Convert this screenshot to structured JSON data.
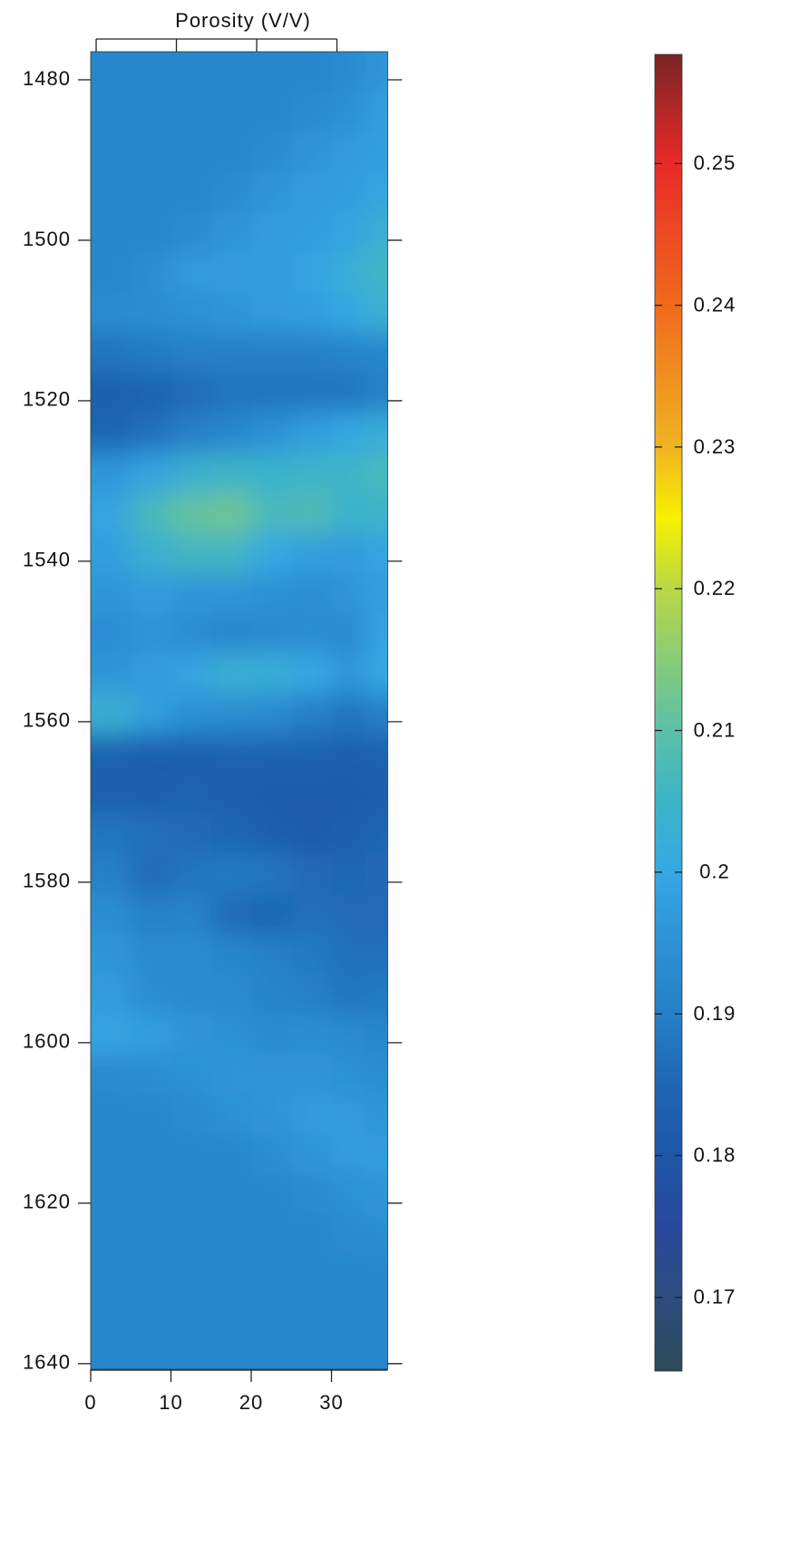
{
  "chart_data": {
    "type": "heatmap",
    "title": "Porosity (V/V)",
    "x": [
      2.5,
      7.5,
      12.5,
      17.5,
      22.5,
      27.5,
      32.5,
      36
    ],
    "y": [
      1479,
      1484,
      1489,
      1494,
      1499,
      1504,
      1509,
      1514,
      1519,
      1524,
      1529,
      1534,
      1539,
      1544,
      1549,
      1554,
      1559,
      1564,
      1569,
      1574,
      1579,
      1584,
      1589,
      1594,
      1599,
      1604,
      1609,
      1614,
      1619,
      1624,
      1629,
      1634,
      1639
    ],
    "z": [
      [
        0.192,
        0.192,
        0.192,
        0.192,
        0.192,
        0.192,
        0.193,
        0.196
      ],
      [
        0.192,
        0.192,
        0.192,
        0.192,
        0.192,
        0.193,
        0.195,
        0.198
      ],
      [
        0.192,
        0.192,
        0.192,
        0.192,
        0.193,
        0.196,
        0.197,
        0.198
      ],
      [
        0.192,
        0.192,
        0.192,
        0.193,
        0.196,
        0.197,
        0.198,
        0.199
      ],
      [
        0.192,
        0.192,
        0.193,
        0.196,
        0.197,
        0.198,
        0.199,
        0.203
      ],
      [
        0.192,
        0.194,
        0.197,
        0.197,
        0.197,
        0.199,
        0.202,
        0.206
      ],
      [
        0.193,
        0.194,
        0.195,
        0.196,
        0.197,
        0.198,
        0.2,
        0.203
      ],
      [
        0.188,
        0.189,
        0.19,
        0.19,
        0.19,
        0.19,
        0.191,
        0.192
      ],
      [
        0.183,
        0.184,
        0.186,
        0.188,
        0.188,
        0.188,
        0.188,
        0.19
      ],
      [
        0.185,
        0.187,
        0.19,
        0.192,
        0.195,
        0.198,
        0.2,
        0.202
      ],
      [
        0.196,
        0.199,
        0.203,
        0.205,
        0.204,
        0.205,
        0.205,
        0.207
      ],
      [
        0.199,
        0.207,
        0.211,
        0.212,
        0.207,
        0.208,
        0.204,
        0.205
      ],
      [
        0.198,
        0.203,
        0.206,
        0.206,
        0.2,
        0.198,
        0.197,
        0.199
      ],
      [
        0.196,
        0.197,
        0.196,
        0.196,
        0.195,
        0.194,
        0.196,
        0.198
      ],
      [
        0.194,
        0.196,
        0.194,
        0.192,
        0.193,
        0.194,
        0.193,
        0.199
      ],
      [
        0.196,
        0.197,
        0.199,
        0.203,
        0.202,
        0.2,
        0.196,
        0.2
      ],
      [
        0.203,
        0.198,
        0.195,
        0.194,
        0.193,
        0.19,
        0.188,
        0.19
      ],
      [
        0.184,
        0.183,
        0.183,
        0.184,
        0.184,
        0.184,
        0.183,
        0.184
      ],
      [
        0.183,
        0.183,
        0.184,
        0.183,
        0.182,
        0.182,
        0.182,
        0.183
      ],
      [
        0.188,
        0.187,
        0.186,
        0.185,
        0.183,
        0.182,
        0.183,
        0.185
      ],
      [
        0.19,
        0.186,
        0.188,
        0.189,
        0.188,
        0.186,
        0.185,
        0.186
      ],
      [
        0.194,
        0.19,
        0.191,
        0.186,
        0.185,
        0.187,
        0.186,
        0.186
      ],
      [
        0.196,
        0.193,
        0.193,
        0.192,
        0.19,
        0.189,
        0.187,
        0.187
      ],
      [
        0.197,
        0.194,
        0.193,
        0.193,
        0.191,
        0.19,
        0.188,
        0.189
      ],
      [
        0.199,
        0.198,
        0.196,
        0.195,
        0.193,
        0.194,
        0.193,
        0.192
      ],
      [
        0.193,
        0.194,
        0.195,
        0.196,
        0.196,
        0.196,
        0.195,
        0.194
      ],
      [
        0.192,
        0.192,
        0.193,
        0.195,
        0.196,
        0.197,
        0.197,
        0.196
      ],
      [
        0.192,
        0.192,
        0.192,
        0.192,
        0.194,
        0.196,
        0.197,
        0.197
      ],
      [
        0.192,
        0.192,
        0.192,
        0.192,
        0.192,
        0.193,
        0.195,
        0.196
      ],
      [
        0.192,
        0.192,
        0.192,
        0.192,
        0.192,
        0.192,
        0.193,
        0.194
      ],
      [
        0.192,
        0.192,
        0.192,
        0.192,
        0.192,
        0.192,
        0.192,
        0.192
      ],
      [
        0.192,
        0.192,
        0.192,
        0.192,
        0.192,
        0.192,
        0.192,
        0.192
      ],
      [
        0.192,
        0.192,
        0.192,
        0.192,
        0.192,
        0.192,
        0.192,
        0.192
      ]
    ],
    "xlim": [
      0,
      37
    ],
    "xticks": [
      0,
      10,
      20,
      30
    ],
    "ylim": [
      1476.5,
      1640.7
    ],
    "yticks": [
      1480,
      1500,
      1520,
      1540,
      1560,
      1580,
      1600,
      1620,
      1640
    ],
    "zlim": [
      0.1648,
      0.2577
    ],
    "zticks": [
      0.17,
      0.18,
      0.19,
      0.2,
      0.21,
      0.22,
      0.23,
      0.24,
      0.25
    ],
    "colorscale": [
      [
        0.1648,
        "#2b4a58"
      ],
      [
        0.17,
        "#2e4c7e"
      ],
      [
        0.175,
        "#27489c"
      ],
      [
        0.18,
        "#1f56a6"
      ],
      [
        0.185,
        "#1f66b2"
      ],
      [
        0.19,
        "#2580c6"
      ],
      [
        0.195,
        "#2c92d6"
      ],
      [
        0.2,
        "#36a8e2"
      ],
      [
        0.205,
        "#3cb4c8"
      ],
      [
        0.21,
        "#5cc0a8"
      ],
      [
        0.215,
        "#88cc78"
      ],
      [
        0.22,
        "#bad844"
      ],
      [
        0.225,
        "#f8f000"
      ],
      [
        0.23,
        "#f0b422"
      ],
      [
        0.24,
        "#f06a1c"
      ],
      [
        0.25,
        "#e82a28"
      ],
      [
        0.2577,
        "#7a2424"
      ]
    ]
  }
}
